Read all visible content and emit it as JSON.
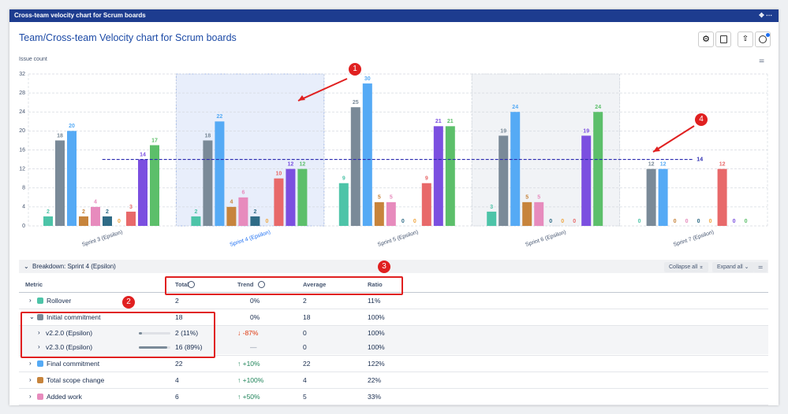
{
  "window_title": "Cross-team velocity chart for Scrum boards",
  "page_title": "Team/Cross-team Velocity chart for Scrum boards",
  "chart_data": {
    "type": "bar",
    "y_label": "Issue count",
    "categories": [
      "Sprint 3 (Epsilon)",
      "Sprint 4 (Epsilon)",
      "Sprint 5 (Epsilon)",
      "Sprint 6 (Epsilon)",
      "Sprint 7 (Epsilon)"
    ],
    "selected_category": 1,
    "shaded_categories": [
      1,
      3
    ],
    "ylim": [
      0,
      32
    ],
    "yticks": [
      0,
      4,
      8,
      12,
      16,
      20,
      24,
      28,
      32
    ],
    "grid": true,
    "series": [
      {
        "color": "#4dc4a8",
        "values": [
          2,
          2,
          9,
          3,
          0
        ]
      },
      {
        "color": "#7a8a98",
        "values": [
          18,
          18,
          25,
          19,
          12
        ]
      },
      {
        "color": "#55aaf5",
        "values": [
          20,
          22,
          30,
          24,
          12
        ]
      },
      {
        "color": "#c7843c",
        "values": [
          2,
          4,
          5,
          5,
          0
        ]
      },
      {
        "color": "#e78bbd",
        "values": [
          4,
          6,
          5,
          5,
          0
        ]
      },
      {
        "color": "#2f6b86",
        "values": [
          2,
          2,
          0,
          0,
          0
        ]
      },
      {
        "color": "#f0a640",
        "values": [
          0,
          0,
          0,
          0,
          0
        ]
      },
      {
        "color": "#e8696a",
        "values": [
          3,
          10,
          9,
          0,
          12
        ]
      },
      {
        "color": "#7b4fe0",
        "values": [
          14,
          12,
          21,
          19,
          0
        ]
      },
      {
        "color": "#5cbf6a",
        "values": [
          17,
          12,
          21,
          24,
          0
        ]
      }
    ],
    "average": 14,
    "average_color": "#2a2ab0"
  },
  "annotations": [
    "1",
    "2",
    "3",
    "4"
  ],
  "breakdown": {
    "title": "Breakdown: Sprint 4 (Epsilon)",
    "buttons": [
      "Collapse all",
      "Expand all"
    ],
    "columns": [
      "Metric",
      "Total",
      "Trend",
      "Average",
      "Ratio"
    ],
    "rows": [
      {
        "metric": "Rollover",
        "color": "#4dc4a8",
        "total": 2,
        "trend": "0%",
        "average": 2,
        "ratio": "11%"
      },
      {
        "metric": "Initial commitment",
        "color": "#7a8a98",
        "expanded": true,
        "total": 18,
        "trend": "0%",
        "average": 18,
        "ratio": "100%"
      },
      {
        "metric": "v2.2.0 (Epsilon)",
        "level": 1,
        "total": "2 (11%)",
        "bar": 11,
        "trend": "↓ -87%",
        "average": 0,
        "ratio": "100%"
      },
      {
        "metric": "v2.3.0 (Epsilon)",
        "level": 1,
        "total": "16 (89%)",
        "bar": 89,
        "trend": "—",
        "average": 0,
        "ratio": "100%"
      },
      {
        "metric": "Final commitment",
        "color": "#55aaf5",
        "total": 22,
        "trend": "↑ +10%",
        "average": 22,
        "ratio": "122%"
      },
      {
        "metric": "Total scope change",
        "color": "#c7843c",
        "total": 4,
        "trend": "↑ +100%",
        "average": 4,
        "ratio": "22%"
      },
      {
        "metric": "Added work",
        "color": "#e78bbd",
        "total": 6,
        "trend": "↑ +50%",
        "average": 5,
        "ratio": "33%"
      }
    ]
  }
}
